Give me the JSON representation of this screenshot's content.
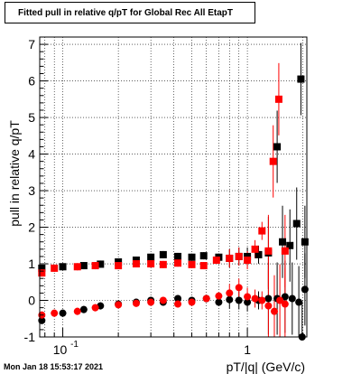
{
  "chart_data": {
    "type": "scatter",
    "title": "Fitted pull in relative q/pT for Global Rec All EtapT",
    "xlabel": "pT/|q| (GeV/c)",
    "ylabel": "pull in relative q/pT",
    "xscale": "log",
    "xlim": [
      0.075,
      2.1
    ],
    "ylim": [
      -1,
      7.2
    ],
    "grid": true,
    "x_tick_labels": [
      {
        "value": 0.1,
        "label": "10",
        "exp": "-1"
      },
      {
        "value": 1,
        "label": "1",
        "exp": ""
      }
    ],
    "y_tick_labels": [
      "-1",
      "0",
      "1",
      "2",
      "3",
      "4",
      "5",
      "6",
      "7"
    ],
    "colors": {
      "black_series": "#000000",
      "red_series": "#ff0000"
    },
    "series": [
      {
        "color": "#000000",
        "marker": "square",
        "role": "width",
        "points": [
          [
            0.077,
            0.88
          ],
          [
            0.1,
            0.92
          ],
          [
            0.13,
            0.95
          ],
          [
            0.16,
            0.99
          ],
          [
            0.2,
            1.05
          ],
          [
            0.25,
            1.1
          ],
          [
            0.3,
            1.18
          ],
          [
            0.35,
            1.25
          ],
          [
            0.42,
            1.2
          ],
          [
            0.5,
            1.18
          ],
          [
            0.58,
            1.22
          ],
          [
            0.7,
            1.18
          ],
          [
            0.8,
            1.15
          ],
          [
            0.9,
            1.2
          ],
          [
            1.0,
            1.2
          ],
          [
            1.15,
            1.25
          ],
          [
            1.3,
            1.3
          ],
          [
            1.45,
            4.2
          ],
          [
            1.55,
            1.6
          ],
          [
            1.7,
            1.5
          ],
          [
            1.85,
            2.1
          ],
          [
            1.95,
            6.05
          ],
          [
            2.05,
            1.6
          ]
        ]
      },
      {
        "color": "#000000",
        "marker": "circle",
        "role": "mean",
        "points": [
          [
            0.077,
            -0.55
          ],
          [
            0.1,
            -0.35
          ],
          [
            0.13,
            -0.25
          ],
          [
            0.16,
            -0.15
          ],
          [
            0.2,
            -0.1
          ],
          [
            0.25,
            -0.05
          ],
          [
            0.3,
            0.0
          ],
          [
            0.35,
            -0.05
          ],
          [
            0.42,
            0.05
          ],
          [
            0.5,
            0.0
          ],
          [
            0.6,
            0.05
          ],
          [
            0.7,
            -0.05
          ],
          [
            0.8,
            0.02
          ],
          [
            0.9,
            0.0
          ],
          [
            1.0,
            -0.05
          ],
          [
            1.15,
            0.0
          ],
          [
            1.3,
            0.05
          ],
          [
            1.45,
            0.05
          ],
          [
            1.6,
            0.1
          ],
          [
            1.75,
            0.05
          ],
          [
            1.9,
            -0.05
          ],
          [
            1.98,
            -1.0
          ],
          [
            2.05,
            0.3
          ]
        ]
      },
      {
        "color": "#ff0000",
        "marker": "square",
        "role": "width",
        "points": [
          [
            0.077,
            0.75
          ],
          [
            0.09,
            0.88
          ],
          [
            0.12,
            0.92
          ],
          [
            0.15,
            0.95
          ],
          [
            0.2,
            0.95
          ],
          [
            0.25,
            1.0
          ],
          [
            0.3,
            1.0
          ],
          [
            0.35,
            0.98
          ],
          [
            0.42,
            1.02
          ],
          [
            0.5,
            0.98
          ],
          [
            0.58,
            0.95
          ],
          [
            0.68,
            1.1
          ],
          [
            0.8,
            1.15
          ],
          [
            0.9,
            1.2
          ],
          [
            1.0,
            1.1
          ],
          [
            1.1,
            1.4
          ],
          [
            1.2,
            1.9
          ],
          [
            1.3,
            1.35
          ],
          [
            1.38,
            3.8
          ],
          [
            1.48,
            5.5
          ],
          [
            1.6,
            1.35
          ]
        ]
      },
      {
        "color": "#ff0000",
        "marker": "circle",
        "role": "mean",
        "points": [
          [
            0.077,
            -0.4
          ],
          [
            0.09,
            -0.35
          ],
          [
            0.12,
            -0.3
          ],
          [
            0.15,
            -0.2
          ],
          [
            0.2,
            -0.12
          ],
          [
            0.25,
            -0.08
          ],
          [
            0.3,
            -0.05
          ],
          [
            0.35,
            0.0
          ],
          [
            0.42,
            -0.1
          ],
          [
            0.5,
            -0.05
          ],
          [
            0.6,
            0.05
          ],
          [
            0.7,
            0.12
          ],
          [
            0.8,
            0.2
          ],
          [
            0.9,
            0.35
          ],
          [
            1.0,
            0.1
          ],
          [
            1.1,
            0.05
          ],
          [
            1.2,
            0.0
          ],
          [
            1.3,
            -0.15
          ],
          [
            1.4,
            -0.3
          ],
          [
            1.5,
            0.0
          ],
          [
            1.6,
            -0.1
          ]
        ]
      }
    ]
  },
  "footer": {
    "datestamp": "Mon Jan 18 15:53:17 2021"
  }
}
